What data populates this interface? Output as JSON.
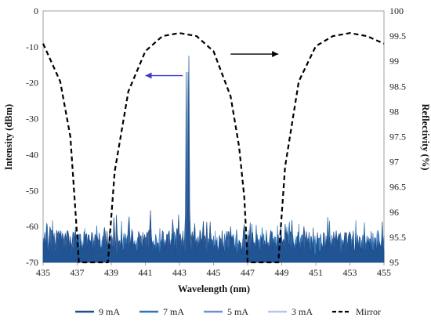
{
  "chart_data": {
    "type": "line",
    "title": "",
    "xlabel": "Wavelength (nm)",
    "ylabel_left": "Intensity (dBm)",
    "ylabel_right": "Reflectivity (%)",
    "xlim": [
      435,
      455
    ],
    "ylim_left": [
      -70,
      0
    ],
    "ylim_right": [
      95,
      100
    ],
    "x_ticks": [
      "435",
      "437",
      "439",
      "441",
      "443",
      "445",
      "447",
      "449",
      "451",
      "453",
      "455"
    ],
    "y_left_ticks": [
      "0",
      "-10",
      "-20",
      "-30",
      "-40",
      "-50",
      "-60",
      "-70"
    ],
    "y_right_ticks": [
      "100",
      "99.5",
      "99",
      "98.5",
      "98",
      "97.5",
      "97",
      "96.5",
      "96",
      "95.5",
      "95"
    ],
    "grid": "none",
    "legend_position": "bottom",
    "series": [
      {
        "name": "9 mA",
        "axis": "left",
        "color": "#1f4e8c",
        "baseline": -64.5,
        "noise_amplitude": 3.5,
        "peaks": [
          {
            "x": 443.55,
            "y": -12.5
          },
          {
            "x": 443.4,
            "y": -17
          },
          {
            "x": 441.3,
            "y": -55.5
          },
          {
            "x": 442.6,
            "y": -58
          },
          {
            "x": 444.4,
            "y": -58.5
          },
          {
            "x": 440.0,
            "y": -59.5
          },
          {
            "x": 446.0,
            "y": -60
          },
          {
            "x": 450.3,
            "y": -60
          }
        ]
      },
      {
        "name": "7 mA",
        "axis": "left",
        "color": "#2e75b6",
        "baseline": -65,
        "noise_amplitude": 3,
        "peaks": [
          {
            "x": 443.5,
            "y": -17
          },
          {
            "x": 441.3,
            "y": -57
          },
          {
            "x": 444.4,
            "y": -60
          }
        ]
      },
      {
        "name": "5 mA",
        "axis": "left",
        "color": "#6a93d4",
        "baseline": -66,
        "noise_amplitude": 2.5,
        "peaks": [
          {
            "x": 443.5,
            "y": -45
          }
        ]
      },
      {
        "name": "3 mA",
        "axis": "left",
        "color": "#b4c7e7",
        "baseline": -67,
        "noise_amplitude": 2,
        "peaks": [
          {
            "x": 443.5,
            "y": -53
          }
        ]
      },
      {
        "name": "Mirror",
        "axis": "right",
        "color": "#000000",
        "dash": true,
        "x": [
          435,
          436,
          436.6,
          437.1,
          438.8,
          439.2,
          440,
          441,
          442,
          443,
          444,
          445,
          446,
          446.5,
          446.8,
          447.0,
          448.8,
          449.2,
          450,
          451,
          452,
          453,
          454,
          455
        ],
        "y": [
          99.35,
          98.6,
          97.5,
          95.0,
          95.0,
          96.8,
          98.4,
          99.2,
          99.5,
          99.56,
          99.5,
          99.2,
          98.3,
          97.3,
          96.3,
          95.0,
          95.0,
          96.9,
          98.6,
          99.3,
          99.5,
          99.56,
          99.5,
          99.35
        ]
      }
    ],
    "annotations": [
      {
        "type": "arrow",
        "direction": "left",
        "color": "#3a3ad0",
        "x_from": 443.2,
        "x_to": 441.0,
        "y": -18
      },
      {
        "type": "arrow",
        "direction": "right",
        "color": "#000000",
        "x_from": 446.0,
        "x_to": 448.8,
        "y": -12
      }
    ]
  }
}
